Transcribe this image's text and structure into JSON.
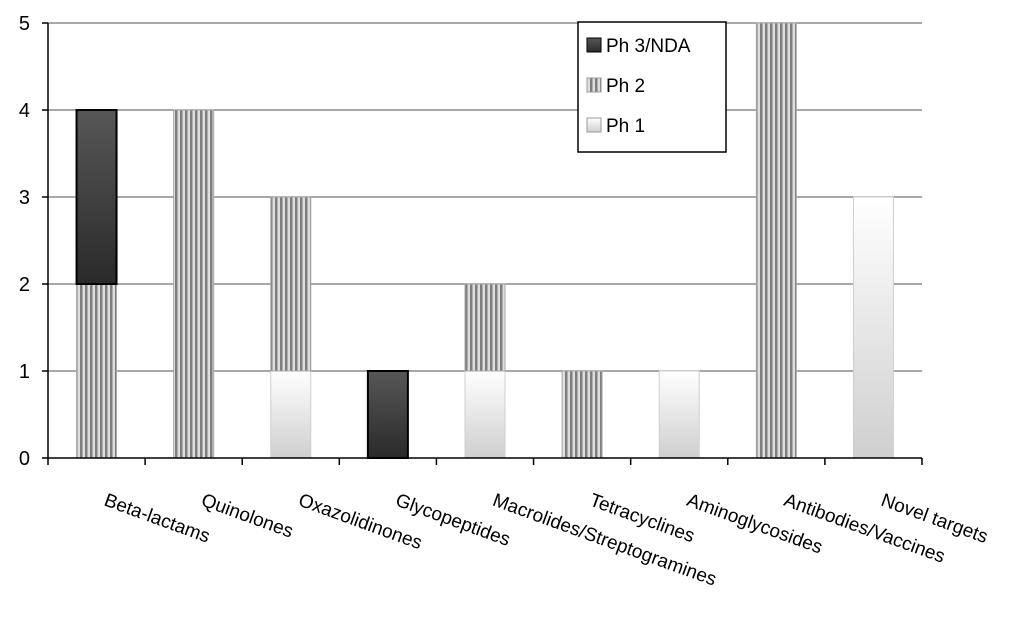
{
  "chart_data": {
    "type": "bar",
    "stacked": true,
    "categories": [
      "Beta-lactams",
      "Quinolones",
      "Oxazolidinones",
      "Glycopeptides",
      "Macrolides/Streptogramines",
      "Tetracyclines",
      "Aminoglycosides",
      "Antibodies/Vaccines",
      "Novel targets"
    ],
    "series": [
      {
        "name": "Ph 1",
        "values": [
          0,
          0,
          1,
          0,
          1,
          0,
          1,
          0,
          3
        ],
        "color": "#dcdcdc",
        "pattern": "gradient-light"
      },
      {
        "name": "Ph 2",
        "values": [
          2,
          4,
          2,
          0,
          1,
          1,
          0,
          5,
          0
        ],
        "color": "#a8a8a8",
        "pattern": "vertical-stripes"
      },
      {
        "name": "Ph 3/NDA",
        "values": [
          2,
          0,
          0,
          1,
          0,
          0,
          0,
          0,
          0
        ],
        "color": "#3a3a3a",
        "pattern": "gradient-dark"
      }
    ],
    "legend_order": [
      "Ph 3/NDA",
      "Ph 2",
      "Ph 1"
    ],
    "legend_position": "top-right",
    "y_ticks": [
      "0",
      "1",
      "2",
      "3",
      "4",
      "5"
    ],
    "ylim": [
      0,
      5
    ],
    "grid": "horizontal",
    "title": "",
    "xlabel": "",
    "ylabel": ""
  }
}
